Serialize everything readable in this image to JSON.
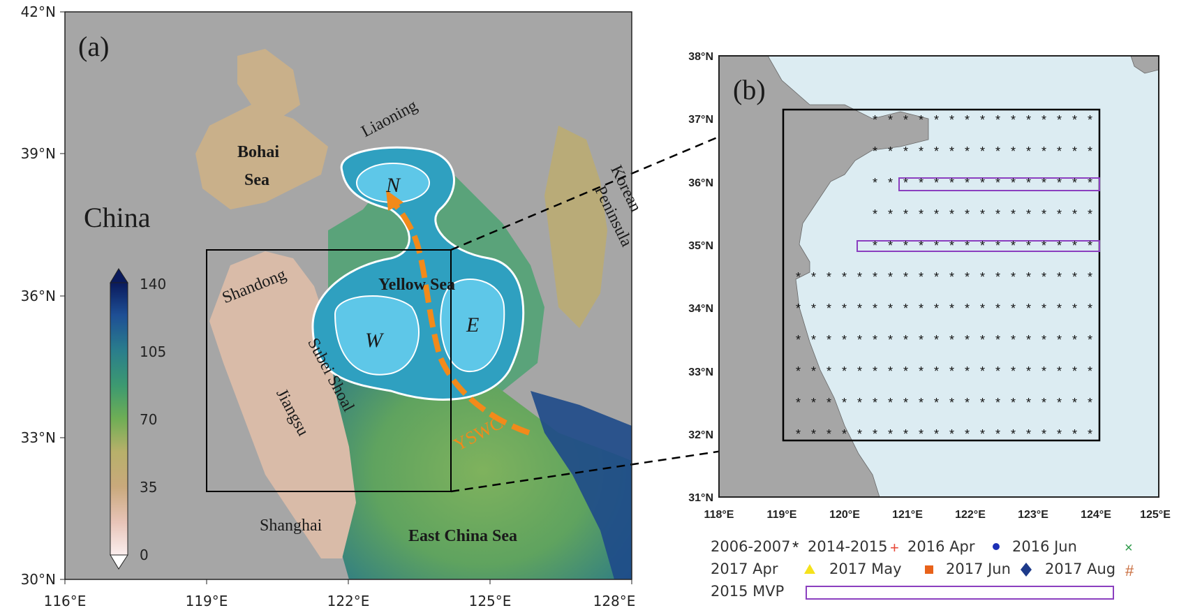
{
  "panel_a": {
    "label": "(a)",
    "lon_ticks": [
      "116°E",
      "119°E",
      "122°E",
      "125°E",
      "128°E"
    ],
    "lat_ticks": [
      "42°N",
      "39°N",
      "36°N",
      "33°N",
      "30°N"
    ],
    "place_names": {
      "china": "China",
      "liaoning": "Liaoning",
      "bohai_1": "Bohai",
      "bohai_2": "Sea",
      "korean": "Korean",
      "peninsula": "Peninsula",
      "shandong": "Shandong",
      "yellow_sea": "Yellow Sea",
      "subei": "Subei Shoal",
      "jiangsu": "Jiangsu",
      "shanghai": "Shanghai",
      "ecs": "East China Sea",
      "yswc": "YSWC",
      "gyre_n": "N",
      "gyre_w": "W",
      "gyre_e": "E"
    },
    "colorbar_ticks": [
      "140",
      "105",
      "70",
      "35",
      "0"
    ],
    "colors": {
      "land": "#a6a6a6",
      "ocean_deep": "#1a3f7a",
      "gyre_fill": "#3aa9c6",
      "gyre_core": "#5cc6e6",
      "yswc_arrow": "#f28a1a"
    }
  },
  "panel_b": {
    "label": "(b)",
    "lon_ticks": [
      "118°E",
      "119°E",
      "120°E",
      "121°E",
      "122°E",
      "123°E",
      "124°E",
      "125°E"
    ],
    "lat_ticks": [
      "38°N",
      "37°N",
      "36°N",
      "35°N",
      "34°N",
      "33°N",
      "32°N",
      "31°N"
    ],
    "colors": {
      "sea": "#dcecf2",
      "land": "#a6a6a6",
      "mvp": "#8b3fbf"
    }
  },
  "legend": {
    "items": [
      {
        "label": "2006-2007",
        "symbol": "asterisk",
        "color": "#222222"
      },
      {
        "label": "2014-2015",
        "symbol": "plus",
        "color": "#e84a3a"
      },
      {
        "label": "2016 Apr",
        "symbol": "circle",
        "color": "#1c2fb5"
      },
      {
        "label": "2016 Jun",
        "symbol": "x",
        "color": "#2e9a4a"
      },
      {
        "label": "2017 Apr",
        "symbol": "triangle",
        "color": "#f5e21c"
      },
      {
        "label": "2017 May",
        "symbol": "square",
        "color": "#e8621a"
      },
      {
        "label": "2017 Jun",
        "symbol": "diamond",
        "color": "#1d3a8a"
      },
      {
        "label": "2017 Aug",
        "symbol": "hash",
        "color": "#c86a3a"
      },
      {
        "label": "2015 MVP",
        "symbol": "rect",
        "color": "#8b3fbf"
      }
    ]
  }
}
